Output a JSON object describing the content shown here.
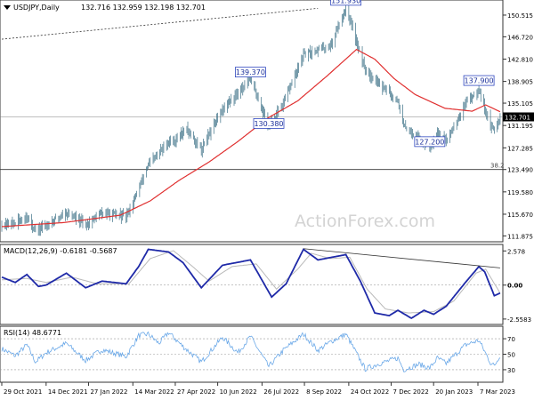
{
  "chart_data": [
    {
      "panel": "price",
      "type": "ohlc",
      "title": "USDJPY,Daily",
      "ohlc": "132.716 132.959 132.198 132.701",
      "watermark": "ActionForex.com",
      "ylim": [
        111,
        153
      ],
      "yticks": [
        "150.515",
        "146.720",
        "142.810",
        "138.905",
        "135.105",
        "131.195",
        "127.285",
        "123.490",
        "119.580",
        "115.670",
        "111.875"
      ],
      "price_axis_values": [
        150.515,
        146.72,
        142.81,
        138.905,
        135.105,
        131.195,
        127.285,
        123.49,
        119.58,
        115.67,
        111.875
      ],
      "current_price": "132.701",
      "current_price_value": 132.701,
      "level_line": {
        "label": "38.2",
        "value": 123.49
      },
      "trendline": [
        {
          "x": "2021-10-29",
          "y": 146.3
        },
        {
          "x": "2022-09-22",
          "y": 151.7
        }
      ],
      "annotations": [
        {
          "label": "151.930",
          "x": "2022-10-21",
          "y": 151.93
        },
        {
          "label": "139.370",
          "x": "2022-07-14",
          "y": 139.37
        },
        {
          "label": "130.380",
          "x": "2022-08-02",
          "y": 130.38
        },
        {
          "label": "137.900",
          "x": "2023-03-08",
          "y": 137.9
        },
        {
          "label": "127.200",
          "x": "2023-01-16",
          "y": 127.2
        }
      ],
      "close": [
        {
          "x": "2021-10-29",
          "y": 113.9
        },
        {
          "x": "2021-11-12",
          "y": 114.1
        },
        {
          "x": "2021-11-24",
          "y": 115.2
        },
        {
          "x": "2021-12-03",
          "y": 112.8
        },
        {
          "x": "2021-12-14",
          "y": 113.7
        },
        {
          "x": "2022-01-04",
          "y": 116.0
        },
        {
          "x": "2022-01-24",
          "y": 113.8
        },
        {
          "x": "2022-02-10",
          "y": 115.9
        },
        {
          "x": "2022-03-07",
          "y": 115.3
        },
        {
          "x": "2022-03-18",
          "y": 119.2
        },
        {
          "x": "2022-03-28",
          "y": 123.8
        },
        {
          "x": "2022-04-20",
          "y": 128.3
        },
        {
          "x": "2022-04-27",
          "y": 128.7
        },
        {
          "x": "2022-05-09",
          "y": 130.6
        },
        {
          "x": "2022-05-24",
          "y": 127.0
        },
        {
          "x": "2022-06-15",
          "y": 134.0
        },
        {
          "x": "2022-06-29",
          "y": 136.7
        },
        {
          "x": "2022-07-14",
          "y": 139.4
        },
        {
          "x": "2022-08-02",
          "y": 131.0
        },
        {
          "x": "2022-08-17",
          "y": 135.0
        },
        {
          "x": "2022-09-07",
          "y": 143.5
        },
        {
          "x": "2022-09-22",
          "y": 144.5
        },
        {
          "x": "2022-10-05",
          "y": 145.2
        },
        {
          "x": "2022-10-21",
          "y": 151.9
        },
        {
          "x": "2022-11-10",
          "y": 141.0
        },
        {
          "x": "2022-11-25",
          "y": 138.5
        },
        {
          "x": "2022-12-14",
          "y": 135.5
        },
        {
          "x": "2022-12-20",
          "y": 131.0
        },
        {
          "x": "2023-01-16",
          "y": 127.5
        },
        {
          "x": "2023-01-24",
          "y": 130.2
        },
        {
          "x": "2023-02-02",
          "y": 128.5
        },
        {
          "x": "2023-02-22",
          "y": 134.9
        },
        {
          "x": "2023-03-08",
          "y": 137.8
        },
        {
          "x": "2023-03-20",
          "y": 131.0
        },
        {
          "x": "2023-03-24",
          "y": 130.5
        },
        {
          "x": "2023-03-30",
          "y": 132.7
        }
      ],
      "sma": [
        {
          "x": "2021-10-29",
          "y": 113.5
        },
        {
          "x": "2022-01-01",
          "y": 114.2
        },
        {
          "x": "2022-03-01",
          "y": 115.5
        },
        {
          "x": "2022-04-01",
          "y": 118.0
        },
        {
          "x": "2022-05-01",
          "y": 121.6
        },
        {
          "x": "2022-06-01",
          "y": 124.8
        },
        {
          "x": "2022-07-01",
          "y": 128.4
        },
        {
          "x": "2022-08-01",
          "y": 132.5
        },
        {
          "x": "2022-09-01",
          "y": 135.5
        },
        {
          "x": "2022-10-01",
          "y": 139.8
        },
        {
          "x": "2022-11-01",
          "y": 144.5
        },
        {
          "x": "2022-11-20",
          "y": 142.8
        },
        {
          "x": "2022-12-10",
          "y": 139.4
        },
        {
          "x": "2023-01-01",
          "y": 136.6
        },
        {
          "x": "2023-02-01",
          "y": 134.2
        },
        {
          "x": "2023-03-01",
          "y": 133.7
        },
        {
          "x": "2023-03-15",
          "y": 134.8
        },
        {
          "x": "2023-03-30",
          "y": 133.6
        }
      ]
    },
    {
      "panel": "macd",
      "type": "line",
      "title": "MACD(12,26,9) -0.6181 -0.5687",
      "ylim": [
        -2.9,
        3.0
      ],
      "yticks": [
        "2.578",
        "0.00",
        "-2.5583"
      ],
      "macd_axis_values": [
        2.578,
        0.0,
        -2.5583
      ],
      "trendline": [
        {
          "x": "2022-09-07",
          "y": 2.75
        },
        {
          "x": "2023-03-30",
          "y": 1.3
        }
      ],
      "macd": [
        {
          "x": "2021-10-29",
          "y": 0.6
        },
        {
          "x": "2021-11-12",
          "y": 0.2
        },
        {
          "x": "2021-11-24",
          "y": 0.8
        },
        {
          "x": "2021-12-06",
          "y": -0.1
        },
        {
          "x": "2021-12-14",
          "y": 0.0
        },
        {
          "x": "2022-01-04",
          "y": 0.9
        },
        {
          "x": "2022-01-24",
          "y": -0.2
        },
        {
          "x": "2022-02-10",
          "y": 0.3
        },
        {
          "x": "2022-03-07",
          "y": 0.1
        },
        {
          "x": "2022-03-20",
          "y": 1.4
        },
        {
          "x": "2022-03-30",
          "y": 2.7
        },
        {
          "x": "2022-04-20",
          "y": 2.5
        },
        {
          "x": "2022-05-05",
          "y": 1.7
        },
        {
          "x": "2022-05-24",
          "y": -0.2
        },
        {
          "x": "2022-06-15",
          "y": 1.5
        },
        {
          "x": "2022-07-14",
          "y": 1.9
        },
        {
          "x": "2022-08-05",
          "y": -0.9
        },
        {
          "x": "2022-08-20",
          "y": 0.1
        },
        {
          "x": "2022-09-07",
          "y": 2.7
        },
        {
          "x": "2022-09-22",
          "y": 1.9
        },
        {
          "x": "2022-10-21",
          "y": 2.3
        },
        {
          "x": "2022-11-05",
          "y": 0.3
        },
        {
          "x": "2022-11-20",
          "y": -2.1
        },
        {
          "x": "2022-12-05",
          "y": -2.3
        },
        {
          "x": "2022-12-14",
          "y": -1.9
        },
        {
          "x": "2022-12-28",
          "y": -2.5
        },
        {
          "x": "2023-01-10",
          "y": -1.9
        },
        {
          "x": "2023-01-20",
          "y": -2.2
        },
        {
          "x": "2023-02-02",
          "y": -1.6
        },
        {
          "x": "2023-02-22",
          "y": 0.2
        },
        {
          "x": "2023-03-08",
          "y": 1.4
        },
        {
          "x": "2023-03-14",
          "y": 1.0
        },
        {
          "x": "2023-03-24",
          "y": -0.8
        },
        {
          "x": "2023-03-30",
          "y": -0.6
        }
      ],
      "signal": [
        {
          "x": "2021-10-29",
          "y": 0.4
        },
        {
          "x": "2021-11-24",
          "y": 0.5
        },
        {
          "x": "2021-12-14",
          "y": 0.2
        },
        {
          "x": "2022-01-10",
          "y": 0.6
        },
        {
          "x": "2022-02-05",
          "y": 0.1
        },
        {
          "x": "2022-03-10",
          "y": 0.1
        },
        {
          "x": "2022-04-01",
          "y": 2.0
        },
        {
          "x": "2022-04-25",
          "y": 2.6
        },
        {
          "x": "2022-05-15",
          "y": 1.4
        },
        {
          "x": "2022-06-01",
          "y": 0.3
        },
        {
          "x": "2022-06-25",
          "y": 1.4
        },
        {
          "x": "2022-07-20",
          "y": 1.6
        },
        {
          "x": "2022-08-10",
          "y": -0.3
        },
        {
          "x": "2022-09-01",
          "y": 1.2
        },
        {
          "x": "2022-09-15",
          "y": 2.4
        },
        {
          "x": "2022-10-05",
          "y": 2.0
        },
        {
          "x": "2022-10-25",
          "y": 2.1
        },
        {
          "x": "2022-11-12",
          "y": -0.3
        },
        {
          "x": "2022-12-01",
          "y": -1.8
        },
        {
          "x": "2022-12-25",
          "y": -2.1
        },
        {
          "x": "2023-01-20",
          "y": -2.0
        },
        {
          "x": "2023-02-10",
          "y": -1.2
        },
        {
          "x": "2023-03-05",
          "y": 0.9
        },
        {
          "x": "2023-03-15",
          "y": 1.2
        },
        {
          "x": "2023-03-30",
          "y": -0.6
        }
      ]
    },
    {
      "panel": "rsi",
      "type": "line",
      "title": "RSI(14) 48.6771",
      "ylim": [
        15,
        85
      ],
      "yticks": [
        "70",
        "50",
        "30"
      ],
      "rsi_axis_values": [
        70,
        50,
        30
      ],
      "rsi": [
        {
          "x": "2021-10-29",
          "y": 57
        },
        {
          "x": "2021-11-12",
          "y": 48
        },
        {
          "x": "2021-11-24",
          "y": 62
        },
        {
          "x": "2021-12-03",
          "y": 40
        },
        {
          "x": "2021-12-14",
          "y": 52
        },
        {
          "x": "2022-01-04",
          "y": 64
        },
        {
          "x": "2022-01-24",
          "y": 42
        },
        {
          "x": "2022-02-10",
          "y": 56
        },
        {
          "x": "2022-03-07",
          "y": 47
        },
        {
          "x": "2022-03-20",
          "y": 74
        },
        {
          "x": "2022-03-30",
          "y": 76
        },
        {
          "x": "2022-04-10",
          "y": 64
        },
        {
          "x": "2022-04-20",
          "y": 78
        },
        {
          "x": "2022-05-05",
          "y": 60
        },
        {
          "x": "2022-05-24",
          "y": 40
        },
        {
          "x": "2022-06-15",
          "y": 72
        },
        {
          "x": "2022-07-01",
          "y": 52
        },
        {
          "x": "2022-07-14",
          "y": 73
        },
        {
          "x": "2022-08-02",
          "y": 34
        },
        {
          "x": "2022-08-17",
          "y": 55
        },
        {
          "x": "2022-09-07",
          "y": 76
        },
        {
          "x": "2022-09-22",
          "y": 55
        },
        {
          "x": "2022-10-05",
          "y": 66
        },
        {
          "x": "2022-10-21",
          "y": 76
        },
        {
          "x": "2022-11-10",
          "y": 31
        },
        {
          "x": "2022-11-25",
          "y": 38
        },
        {
          "x": "2022-12-14",
          "y": 45
        },
        {
          "x": "2022-12-20",
          "y": 30
        },
        {
          "x": "2023-01-05",
          "y": 37
        },
        {
          "x": "2023-01-16",
          "y": 32
        },
        {
          "x": "2023-01-24",
          "y": 45
        },
        {
          "x": "2023-02-02",
          "y": 38
        },
        {
          "x": "2023-02-22",
          "y": 62
        },
        {
          "x": "2023-03-08",
          "y": 68
        },
        {
          "x": "2023-03-20",
          "y": 39
        },
        {
          "x": "2023-03-24",
          "y": 35
        },
        {
          "x": "2023-03-30",
          "y": 48.7
        }
      ]
    }
  ],
  "xaxis": {
    "start": "2021-10-29",
    "end": "2023-03-31",
    "ticks": [
      {
        "label": "29 Oct 2021",
        "date": "2021-10-29"
      },
      {
        "label": "14 Dec 2021",
        "date": "2021-12-14"
      },
      {
        "label": "27 Jan 2022",
        "date": "2022-01-27"
      },
      {
        "label": "14 Mar 2022",
        "date": "2022-03-14"
      },
      {
        "label": "27 Apr 2022",
        "date": "2022-04-27"
      },
      {
        "label": "10 Jun 2022",
        "date": "2022-06-10"
      },
      {
        "label": "26 Jul 2022",
        "date": "2022-07-26"
      },
      {
        "label": "8 Sep 2022",
        "date": "2022-09-08"
      },
      {
        "label": "24 Oct 2022",
        "date": "2022-10-24"
      },
      {
        "label": "7 Dec 2022",
        "date": "2022-12-07"
      },
      {
        "label": "20 Jan 2023",
        "date": "2023-01-20"
      },
      {
        "label": "7 Mar 2023",
        "date": "2023-03-07"
      }
    ]
  },
  "colors": {
    "bars": "#3a6f85",
    "sma": "#e03030",
    "macd": "#1f2aa8",
    "signal": "#b9b9b9",
    "rsi": "#6aa8e8",
    "annotation_border": "#3048c0",
    "annotation_text": "#1a2f9a",
    "grid": "#808080"
  }
}
